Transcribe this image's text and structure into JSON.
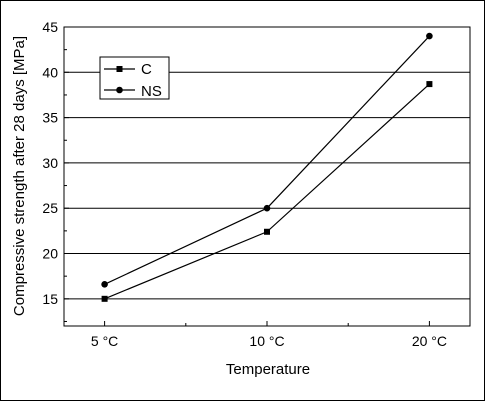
{
  "chart_data": {
    "type": "line",
    "xlabel": "Temperature",
    "ylabel": "Compressive strength after 28 days [MPa]",
    "categories": [
      "5 °C",
      "10 °C",
      "20 °C"
    ],
    "ylim": [
      12,
      45
    ],
    "yticks": [
      15,
      20,
      25,
      30,
      35,
      40,
      45
    ],
    "grid": "horizontal",
    "legend": "top-left",
    "series": [
      {
        "name": "C",
        "marker": "square",
        "values": [
          15.0,
          22.4,
          38.7
        ]
      },
      {
        "name": "NS",
        "marker": "circle",
        "values": [
          16.6,
          25.0,
          44.0
        ]
      }
    ]
  }
}
